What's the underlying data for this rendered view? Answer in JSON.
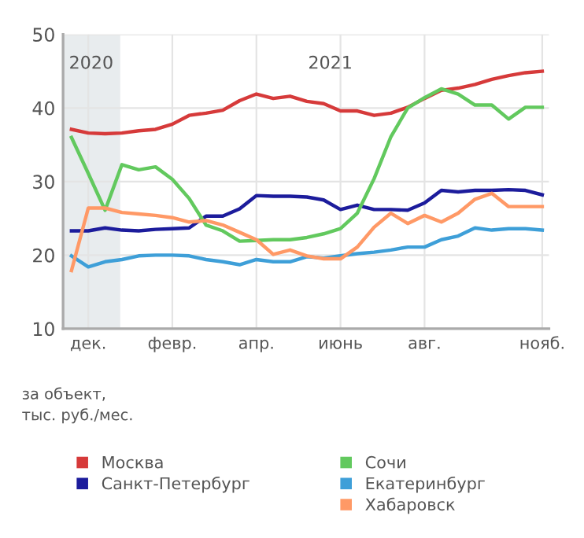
{
  "chart_data": {
    "type": "line",
    "ylabel": "за объект,\nтыс. руб./мес.",
    "categories": [
      null,
      "дек.",
      null,
      null,
      null,
      null,
      "февр.",
      null,
      null,
      null,
      null,
      "апр.",
      null,
      null,
      null,
      null,
      "июнь",
      null,
      null,
      null,
      null,
      "авг.",
      null,
      null,
      null,
      null,
      null,
      null,
      "нояб."
    ],
    "ylim": [
      10,
      50
    ],
    "yticks": [
      10,
      20,
      30,
      40,
      50
    ],
    "grid": true,
    "legend": "bottom",
    "marker": "none",
    "line_style": "solid",
    "annotations": [
      "2020",
      "2021"
    ],
    "series": [
      {
        "name": "Москва",
        "color": "#d63a3a",
        "values": [
          37.1,
          36.6,
          36.5,
          36.6,
          36.9,
          37.1,
          37.8,
          39.0,
          39.3,
          39.7,
          41.0,
          41.9,
          41.3,
          41.6,
          40.9,
          40.6,
          39.6,
          39.6,
          39.0,
          39.3,
          40.1,
          41.3,
          42.4,
          42.7,
          43.2,
          43.9,
          44.4,
          44.8,
          45.0
        ]
      },
      {
        "name": "Санкт-Петербург",
        "color": "#1c1c9c",
        "values": [
          23.3,
          23.3,
          23.7,
          23.4,
          23.3,
          23.5,
          23.6,
          23.7,
          25.3,
          25.3,
          26.3,
          28.1,
          28.0,
          28.0,
          27.9,
          27.5,
          26.2,
          26.8,
          26.2,
          26.2,
          26.1,
          27.1,
          28.8,
          28.6,
          28.8,
          28.8,
          28.9,
          28.8,
          28.2
        ]
      },
      {
        "name": "Сочи",
        "color": "#62c95e",
        "values": [
          36.0,
          31.1,
          26.1,
          32.3,
          31.6,
          32.0,
          30.3,
          27.7,
          24.1,
          23.3,
          21.9,
          22.0,
          22.1,
          22.1,
          22.4,
          22.9,
          23.6,
          25.7,
          30.4,
          36.1,
          40.0,
          41.4,
          42.6,
          41.9,
          40.4,
          40.4,
          38.5,
          40.1,
          40.1
        ]
      },
      {
        "name": "Екатеринбург",
        "color": "#3e9fd8",
        "values": [
          19.9,
          18.4,
          19.1,
          19.4,
          19.9,
          20.0,
          20.0,
          19.9,
          19.4,
          19.1,
          18.7,
          19.4,
          19.1,
          19.1,
          19.8,
          19.6,
          19.9,
          20.2,
          20.4,
          20.7,
          21.1,
          21.1,
          22.1,
          22.6,
          23.7,
          23.4,
          23.6,
          23.6,
          23.4
        ]
      },
      {
        "name": "Хабаровск",
        "color": "#ff9966",
        "values": [
          17.9,
          26.4,
          26.4,
          25.8,
          25.6,
          25.4,
          25.1,
          24.5,
          24.7,
          24.1,
          23.1,
          22.1,
          20.1,
          20.7,
          19.9,
          19.5,
          19.5,
          21.1,
          23.8,
          25.7,
          24.3,
          25.4,
          24.5,
          25.7,
          27.6,
          28.4,
          26.6,
          26.6,
          26.6
        ]
      }
    ]
  }
}
